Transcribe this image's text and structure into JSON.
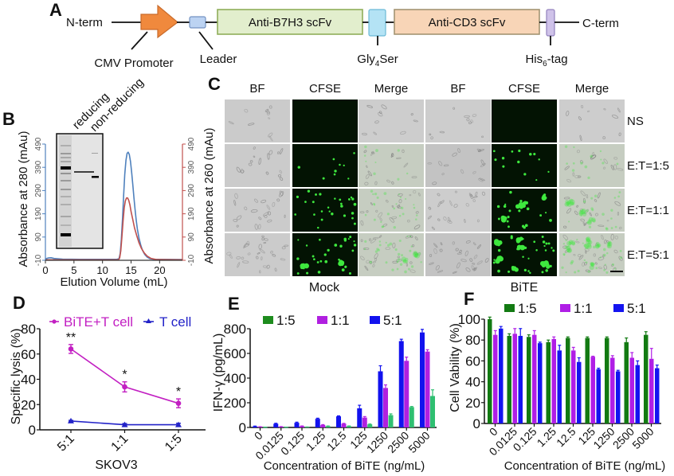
{
  "figure_panels": {
    "a": "A",
    "b": "B",
    "c": "C",
    "d": "D",
    "e": "E",
    "f": "F"
  },
  "panel_a": {
    "n_term": "N-term",
    "c_term": "C-term",
    "cmv_promoter": {
      "label": "CMV Promoter",
      "fill": "#f0893d",
      "stroke": "#c96b2b"
    },
    "leader": {
      "label": "Leader",
      "fill": "#bcd3f2",
      "stroke": "#7392c2"
    },
    "anti_b7h3": {
      "label": "Anti-B7H3 scFv",
      "fill": "#e2eecd",
      "stroke": "#8fae5a"
    },
    "gly4ser": {
      "label_main": "Gly",
      "label_sub": "4",
      "label_tail": "Ser",
      "fill": "#b4e3f5",
      "stroke": "#6bb9d6"
    },
    "anti_cd3": {
      "label": "Anti-CD3 scFv",
      "fill": "#f8d5b7",
      "stroke": "#a39473"
    },
    "his6": {
      "label_main": "His",
      "label_sub": "6",
      "label_tail": "-tag",
      "fill": "#cfc2e9",
      "stroke": "#9382bd"
    }
  },
  "panel_b": {
    "gel_lanes": [
      "reducing",
      "non-reducing"
    ]
  },
  "panel_c": {
    "column_headers": [
      "BF",
      "CFSE",
      "Merge",
      "BF",
      "CFSE",
      "Merge"
    ],
    "row_labels": [
      "NS",
      "E:T=1:5",
      "E:T=1:1",
      "E:T=5:1"
    ],
    "group_labels": [
      "Mock",
      "BiTE"
    ],
    "cfse_spots": {
      "mock": [
        0,
        9,
        26,
        30
      ],
      "bite": [
        0,
        13,
        20,
        30
      ]
    },
    "cfse_clusters": {
      "mock": [
        0,
        0,
        0,
        2
      ],
      "bite": [
        0,
        0,
        4,
        7
      ]
    },
    "colors": {
      "bf": "#cbcbcb",
      "cfse_bg": "#031303",
      "cfse_spot": "#3ee83e",
      "merge": "#c6cdc1",
      "merge_ns": "#cdcdcd"
    }
  },
  "chart_data": [
    {
      "id": "B",
      "type": "line",
      "title": "",
      "xlabel": "Elution Volume (mL)",
      "ylabel": "Absorbance at 280 (mAu)",
      "ylabel_right": "Absorbance at 260 (mAu)",
      "xlim": [
        0,
        24
      ],
      "ylim": [
        -10,
        490
      ],
      "xticks": [
        0,
        5,
        10,
        15,
        20
      ],
      "yticks": [
        -10,
        90,
        190,
        290,
        390,
        490
      ],
      "yticks_right": [
        -10,
        90,
        190,
        290,
        390,
        490
      ],
      "left_axis_color": "#4f81bd",
      "right_axis_color": "#c0504d",
      "grid": false,
      "series": [
        {
          "name": "A280",
          "axis": "left",
          "color": "#4f81bd",
          "points": [
            [
              0,
              -4
            ],
            [
              0.5,
              0
            ],
            [
              1,
              1
            ],
            [
              1.5,
              -2
            ],
            [
              3,
              -5
            ],
            [
              6,
              -6
            ],
            [
              10,
              -6
            ],
            [
              12.5,
              -6
            ],
            [
              12.9,
              -3
            ],
            [
              13.1,
              20
            ],
            [
              13.3,
              80
            ],
            [
              13.5,
              170
            ],
            [
              13.7,
              270
            ],
            [
              13.9,
              360
            ],
            [
              14.1,
              420
            ],
            [
              14.3,
              450
            ],
            [
              14.5,
              455
            ],
            [
              14.7,
              445
            ],
            [
              14.9,
              415
            ],
            [
              15.1,
              370
            ],
            [
              15.3,
              315
            ],
            [
              15.5,
              260
            ],
            [
              15.7,
              210
            ],
            [
              15.9,
              165
            ],
            [
              16.1,
              125
            ],
            [
              16.4,
              85
            ],
            [
              16.7,
              55
            ],
            [
              17,
              33
            ],
            [
              17.4,
              15
            ],
            [
              17.8,
              4
            ],
            [
              18.3,
              -3
            ],
            [
              19,
              -6
            ],
            [
              24,
              -7
            ]
          ]
        },
        {
          "name": "A260",
          "axis": "right",
          "color": "#c0504d",
          "points": [
            [
              0,
              -8
            ],
            [
              12.8,
              -8
            ],
            [
              13,
              0
            ],
            [
              13.2,
              30
            ],
            [
              13.4,
              90
            ],
            [
              13.6,
              160
            ],
            [
              13.8,
              215
            ],
            [
              14,
              245
            ],
            [
              14.2,
              258
            ],
            [
              14.4,
              258
            ],
            [
              14.6,
              248
            ],
            [
              14.8,
              228
            ],
            [
              15,
              200
            ],
            [
              15.3,
              165
            ],
            [
              15.6,
              130
            ],
            [
              16,
              95
            ],
            [
              16.4,
              65
            ],
            [
              16.8,
              42
            ],
            [
              17.3,
              22
            ],
            [
              17.8,
              8
            ],
            [
              18.5,
              -2
            ],
            [
              19.5,
              -7
            ],
            [
              24,
              -8
            ]
          ]
        }
      ]
    },
    {
      "id": "D",
      "type": "line",
      "title": "",
      "xlabel": "SKOV3",
      "ylabel": "Specific lysis (%)",
      "categories": [
        "5:1",
        "1:1",
        "1:5"
      ],
      "ylim": [
        0,
        80
      ],
      "yticks": [
        0,
        20,
        40,
        60,
        80
      ],
      "legend_position": "top",
      "series": [
        {
          "name": "BiTE+T cell",
          "color": "#c21fc2",
          "marker": "circle",
          "values": [
            64,
            34,
            21
          ],
          "errors": [
            3.5,
            4,
            3.5
          ],
          "significance": [
            "**",
            "*",
            "*"
          ]
        },
        {
          "name": "T cell",
          "color": "#2323c8",
          "marker": "triangle",
          "values": [
            7,
            4,
            4
          ],
          "errors": [
            0.5,
            1,
            1.2
          ]
        }
      ]
    },
    {
      "id": "E",
      "type": "bar",
      "title": "",
      "xlabel": "Concentration of BiTE (ng/mL)",
      "ylabel": "IFN-γ (pg/mL)",
      "categories": [
        "0",
        "0.0125",
        "0.125",
        "1.25",
        "12.5",
        "125",
        "1250",
        "2500",
        "5000"
      ],
      "ylim": [
        0,
        800
      ],
      "yticks": [
        0,
        200,
        400,
        600,
        800
      ],
      "legend_position": "top",
      "bar_order": [
        "5:1",
        "1:1",
        "1:5"
      ],
      "series": [
        {
          "name": "1:5",
          "color": "#2fbf71",
          "legend_color": "#1e8c1e",
          "values": [
            2,
            2,
            3,
            10,
            10,
            25,
            100,
            165,
            255
          ],
          "errors": [
            0.5,
            0.5,
            1,
            2,
            2,
            3,
            10,
            5,
            50
          ]
        },
        {
          "name": "1:1",
          "color": "#b020e0",
          "legend_color": "#b020e0",
          "values": [
            5,
            5,
            10,
            20,
            30,
            80,
            320,
            540,
            615
          ],
          "errors": [
            1,
            2,
            2,
            3,
            3,
            8,
            25,
            30,
            15
          ]
        },
        {
          "name": "5:1",
          "color": "#1212ee",
          "legend_color": "#1212ee",
          "values": [
            8,
            30,
            38,
            70,
            90,
            155,
            455,
            700,
            770
          ],
          "errors": [
            3,
            4,
            5,
            5,
            4,
            25,
            45,
            15,
            25
          ]
        }
      ]
    },
    {
      "id": "F",
      "type": "bar",
      "title": "",
      "xlabel": "Concentration of BiTE (ng/mL)",
      "ylabel": "Cell Vability (%)",
      "categories": [
        "0",
        "0.0125",
        "0.125",
        "1.25",
        "12.5",
        "125",
        "1250",
        "2500",
        "5000"
      ],
      "ylim": [
        0,
        100
      ],
      "yticks": [
        0,
        20,
        40,
        60,
        80,
        100
      ],
      "legend_position": "top",
      "bar_order": [
        "1:5",
        "1:1",
        "5:1"
      ],
      "series": [
        {
          "name": "1:5",
          "color": "#127a12",
          "legend_color": "#127a12",
          "values": [
            100,
            84,
            83,
            78,
            82,
            82,
            82,
            78,
            85
          ],
          "errors": [
            2,
            2,
            2,
            2,
            1,
            1,
            1,
            4,
            3
          ]
        },
        {
          "name": "1:1",
          "color": "#b01ee6",
          "legend_color": "#b01ee6",
          "values": [
            85,
            86,
            85,
            81,
            70,
            64,
            63,
            63,
            62
          ],
          "errors": [
            4,
            5,
            4,
            2,
            3,
            0.5,
            2,
            5,
            10
          ]
        },
        {
          "name": "5:1",
          "color": "#1414f0",
          "legend_color": "#1414f0",
          "values": [
            91,
            84,
            77,
            70,
            59,
            52,
            50,
            56,
            53
          ],
          "errors": [
            2,
            7,
            1,
            5,
            4,
            1,
            1,
            4,
            3
          ]
        }
      ]
    }
  ]
}
